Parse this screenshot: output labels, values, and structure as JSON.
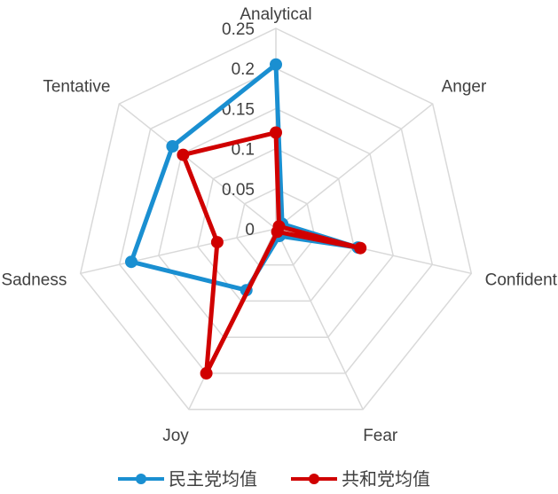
{
  "chart_data": {
    "type": "radar",
    "categories": [
      "Analytical",
      "Anger",
      "Confident",
      "Fear",
      "Joy",
      "Sadness",
      "Tentative"
    ],
    "rlim": [
      0,
      0.25
    ],
    "ticks": [
      "0",
      "0.05",
      "0.1",
      "0.15",
      "0.2",
      "0.25"
    ],
    "tick_values": [
      0,
      0.05,
      0.1,
      0.15,
      0.2,
      0.25
    ],
    "grid": true,
    "legend_position": "bottom",
    "series": [
      {
        "name": "民主党均值",
        "color": "#1a8fd1",
        "values": [
          0.205,
          0.01,
          0.105,
          0.01,
          0.085,
          0.185,
          0.165
        ]
      },
      {
        "name": "共和党均值",
        "color": "#d00000",
        "values": [
          0.12,
          0.005,
          0.108,
          0.004,
          0.2,
          0.075,
          0.148
        ]
      }
    ]
  }
}
